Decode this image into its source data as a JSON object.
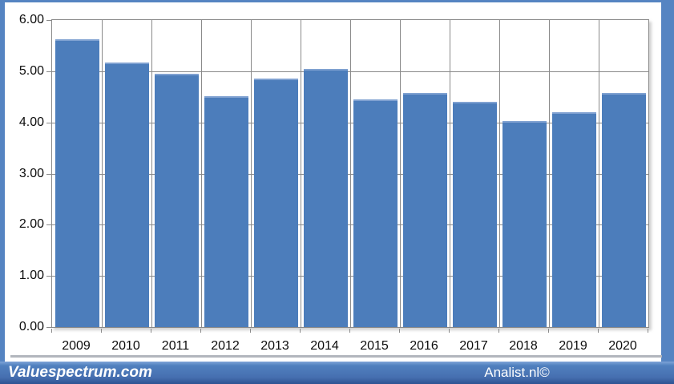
{
  "chart_data": {
    "type": "bar",
    "categories": [
      "2009",
      "2010",
      "2011",
      "2012",
      "2013",
      "2014",
      "2015",
      "2016",
      "2017",
      "2018",
      "2019",
      "2020"
    ],
    "values": [
      5.63,
      5.17,
      4.95,
      4.51,
      4.85,
      5.04,
      4.45,
      4.58,
      4.41,
      4.03,
      4.2,
      4.57
    ],
    "title": "",
    "xlabel": "",
    "ylabel": "",
    "ylim": [
      0,
      6
    ],
    "ytick_step": 1.0,
    "ytick_labels": [
      "0.00",
      "1.00",
      "2.00",
      "3.00",
      "4.00",
      "5.00",
      "6.00"
    ],
    "grid": true,
    "legend": false,
    "bar_color": "#4c7dbb",
    "bar_highlight_color": "#7fa1d1",
    "gridline_color": "#8a8a8a"
  },
  "footer": {
    "left_text": "Valuespectrum.com",
    "right_text": "Analist.nl©",
    "background": "#466fb0"
  },
  "frame": {
    "border_color": "#5584c2"
  }
}
